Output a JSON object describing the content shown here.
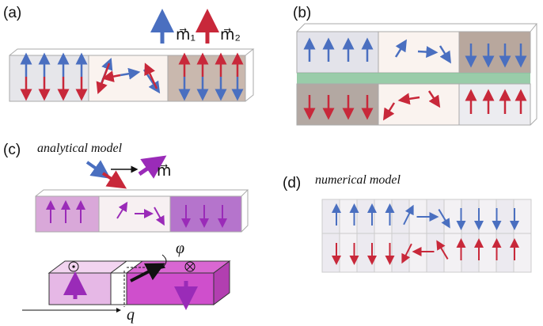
{
  "panels": {
    "a": {
      "label": "(a)",
      "legend": [
        "m⃗₁",
        "m⃗₂"
      ]
    },
    "b": {
      "label": "(b)"
    },
    "c": {
      "label": "(c)",
      "title": "analytical model",
      "legend": "m⃗",
      "angle": "φ",
      "position": "q"
    },
    "d": {
      "label": "(d)",
      "title": "numerical model"
    }
  }
}
